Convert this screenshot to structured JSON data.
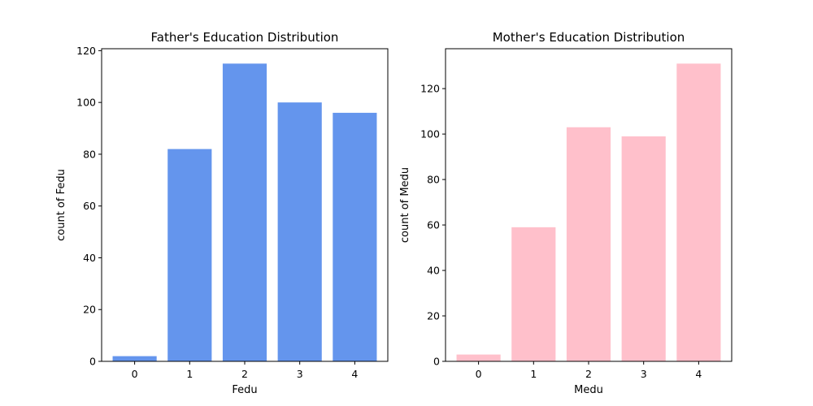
{
  "chart_data": [
    {
      "type": "bar",
      "title": "Father's Education Distribution",
      "xlabel": "Fedu",
      "ylabel": "count of Fedu",
      "categories": [
        "0",
        "1",
        "2",
        "3",
        "4"
      ],
      "values": [
        2,
        82,
        115,
        100,
        96
      ],
      "ylim": [
        0,
        120.75
      ],
      "yticks": [
        0,
        20,
        40,
        60,
        80,
        100,
        120
      ],
      "color": "#6495ED",
      "grid": false,
      "legend": "none"
    },
    {
      "type": "bar",
      "title": "Mother's Education Distribution",
      "xlabel": "Medu",
      "ylabel": "count of Medu",
      "categories": [
        "0",
        "1",
        "2",
        "3",
        "4"
      ],
      "values": [
        3,
        59,
        103,
        99,
        131
      ],
      "ylim": [
        0,
        137.55
      ],
      "yticks": [
        0,
        20,
        40,
        60,
        80,
        100,
        120
      ],
      "color": "#FFC0CB",
      "grid": false,
      "legend": "none"
    }
  ]
}
